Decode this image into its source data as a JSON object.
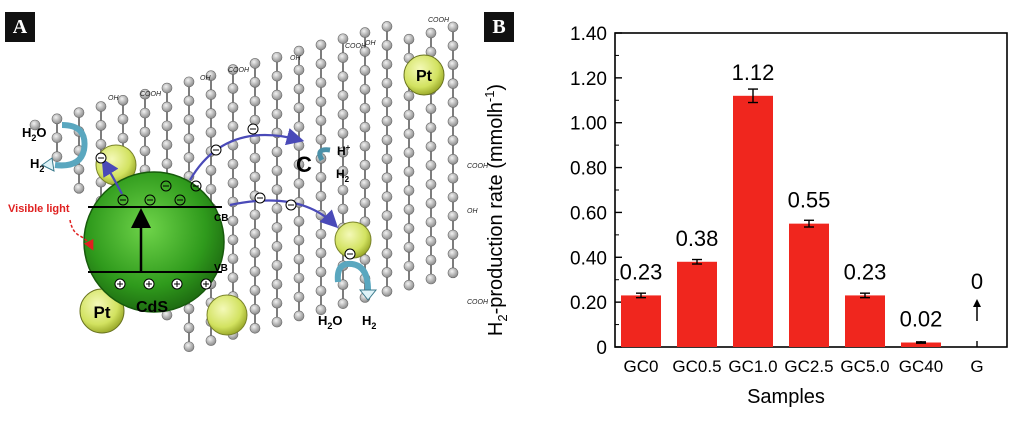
{
  "panel_a": {
    "tag": "A",
    "labels": {
      "pt_top": "Pt",
      "pt_left": "Pt",
      "cds": "CdS",
      "cb": "CB",
      "vb": "VB",
      "visible_light": "Visible light",
      "c_label": "C",
      "h_plus": "H",
      "h_plus_sup": "+",
      "h2o_left": "H",
      "h2o_left_sub": "2",
      "h2o_left_end": "O",
      "h2_left": "H",
      "h2_left_sub": "2",
      "h2_right_top": "H",
      "h2_right_top_sub": "2",
      "h2o_bottom": "H",
      "h2o_bottom_sub": "2",
      "h2o_bottom_end": "O",
      "h2_bottom": "H",
      "h2_bottom_sub": "2",
      "oh_1": "OH",
      "cooh_1": "COOH",
      "oh_2": "OH",
      "cooh_2": "COOH",
      "oh_3": "OH",
      "cooh_3": "COOH",
      "cooh_4": "COOH",
      "oh_4": "OH",
      "cooh_5": "COOH",
      "oh_5": "OH",
      "cooh_6": "COOH"
    },
    "colors": {
      "cds_green": "#3fb025",
      "pt_yellow": "#d8e86a",
      "electron_arrow": "#4a4ab8",
      "light_red": "#e02020"
    }
  },
  "panel_b": {
    "tag": "B",
    "chart_data": {
      "type": "bar",
      "categories": [
        "GC0",
        "GC0.5",
        "GC1.0",
        "GC2.5",
        "GC5.0",
        "GC40",
        "G"
      ],
      "values": [
        0.23,
        0.38,
        1.12,
        0.55,
        0.23,
        0.02,
        0
      ],
      "errors": [
        0.01,
        0.01,
        0.03,
        0.015,
        0.01,
        0.003,
        0
      ],
      "data_labels": [
        "0.23",
        "0.38",
        "1.12",
        "0.55",
        "0.23",
        "0.02",
        "0"
      ],
      "xlabel": "Samples",
      "ylabel_parts": {
        "h": "H",
        "sub": "2",
        "rest": "-production rate (mmolh",
        "sup": "-1",
        "close": ")"
      },
      "ylim": [
        0,
        1.4
      ],
      "yticks": [
        "0",
        "0.20",
        "0.40",
        "0.60",
        "0.80",
        "1.00",
        "1.20",
        "1.40"
      ],
      "bar_color": "#f0261e",
      "grid": false
    }
  }
}
